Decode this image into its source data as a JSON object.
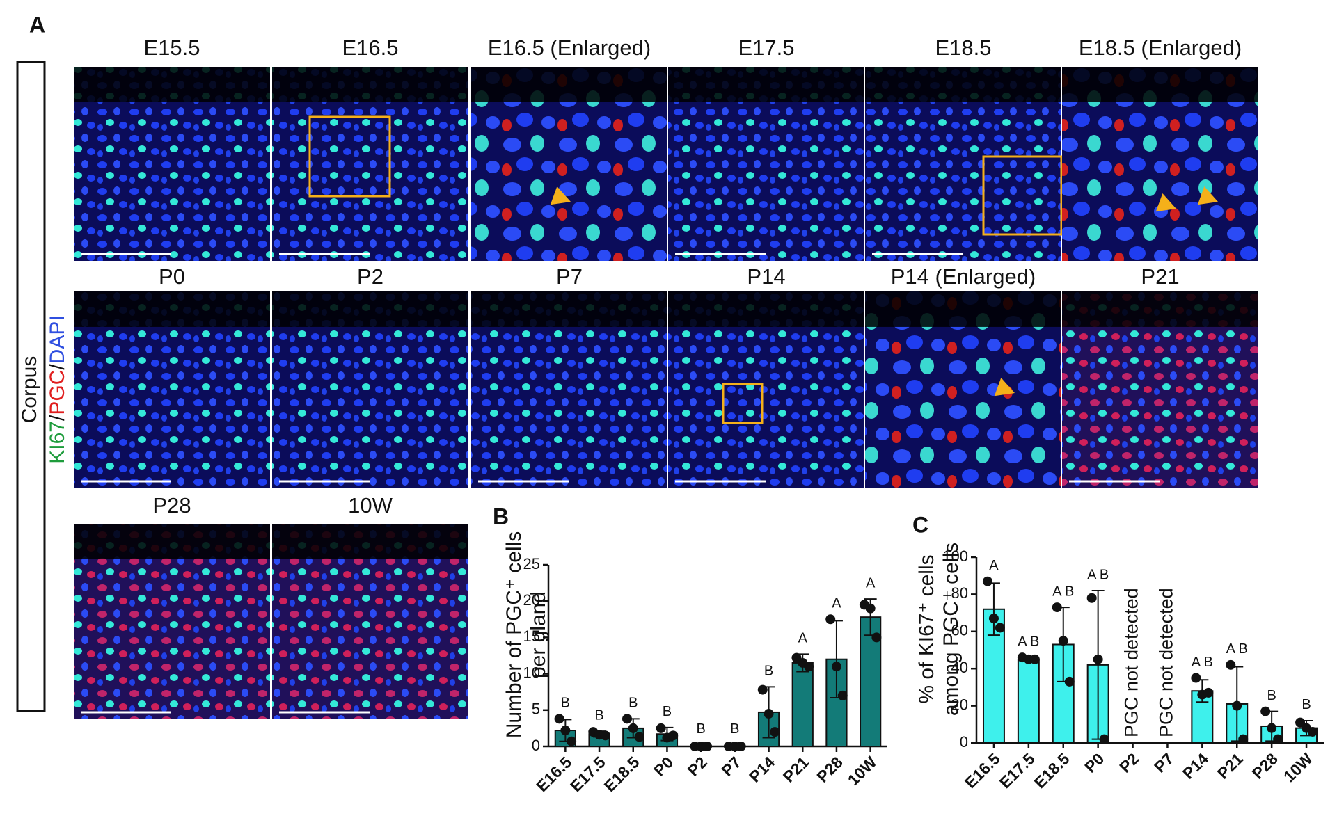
{
  "panel_a": {
    "letter": "A",
    "tissue": "Corpus",
    "stain": [
      {
        "text": "KI67",
        "color": "#1e9c3c"
      },
      {
        "text": "/",
        "color": "#111111"
      },
      {
        "text": "PGC",
        "color": "#e01e1e"
      },
      {
        "text": "/",
        "color": "#111111"
      },
      {
        "text": "DAPI",
        "color": "#2f4fe0"
      }
    ],
    "rows": [
      [
        "E15.5",
        "E16.5",
        "E16.5 (Enlarged)",
        "E17.5",
        "E18.5",
        "E18.5 (Enlarged)"
      ],
      [
        "P0",
        "P2",
        "P7",
        "P14",
        "P14 (Enlarged)",
        "P21"
      ],
      [
        "P28",
        "10W"
      ]
    ]
  },
  "chart_data": [
    {
      "type": "bar",
      "letter": "B",
      "ylabel": [
        "Number of PGC⁺ cells",
        "per gland"
      ],
      "categories": [
        "E16.5",
        "E17.5",
        "E18.5",
        "P0",
        "P2",
        "P7",
        "P14",
        "P21",
        "P28",
        "10W"
      ],
      "values": [
        2.2,
        1.7,
        2.5,
        1.7,
        0.1,
        0.1,
        4.7,
        11.5,
        12,
        17.8
      ],
      "errors": [
        1.5,
        0.4,
        1.3,
        0.9,
        0.1,
        0.1,
        3.5,
        1.2,
        5.3,
        2.5
      ],
      "points": [
        [
          3.8,
          2.2,
          0.7
        ],
        [
          2.0,
          1.6,
          1.5
        ],
        [
          3.8,
          2.5,
          1.3
        ],
        [
          2.5,
          1.2,
          1.5
        ],
        [
          0,
          0,
          0
        ],
        [
          0,
          0,
          0
        ],
        [
          7.8,
          4.5,
          2.0
        ],
        [
          12.2,
          11.5,
          11.0
        ],
        [
          17.5,
          11.0,
          7.0
        ],
        [
          19.5,
          19.0,
          15.0
        ]
      ],
      "letters": [
        "B",
        "B",
        "B",
        "B",
        "B",
        "B",
        "B",
        "A",
        "A",
        "A"
      ],
      "color": "#137b78",
      "ylim": [
        0,
        25
      ],
      "yticks": [
        0,
        5,
        10,
        15,
        20,
        25
      ]
    },
    {
      "type": "bar",
      "letter": "C",
      "ylabel": [
        "% of KI67⁺ cells",
        "among PGC⁺ cells"
      ],
      "categories": [
        "E16.5",
        "E17.5",
        "E18.5",
        "P0",
        "P2",
        "P7",
        "P14",
        "P21",
        "P28",
        "10W"
      ],
      "values": [
        72,
        45,
        53,
        42,
        null,
        null,
        28,
        21,
        9,
        8
      ],
      "errors": [
        14,
        1,
        20,
        40,
        null,
        null,
        6,
        20,
        8,
        4
      ],
      "points": [
        [
          87,
          67,
          62
        ],
        [
          46,
          45,
          45
        ],
        [
          73,
          55,
          33
        ],
        [
          78,
          45,
          2
        ],
        null,
        null,
        [
          35,
          26,
          27
        ],
        [
          42,
          20,
          2
        ],
        [
          17,
          8,
          2
        ],
        [
          11,
          8,
          6
        ]
      ],
      "letters": [
        "A",
        "A B",
        "A B",
        "A B",
        null,
        null,
        "A B",
        "A B",
        "B",
        "B"
      ],
      "annotations": [
        {
          "text": "PGC not detected",
          "x": "P2"
        },
        {
          "text": "PGC not detected",
          "x": "P7"
        }
      ],
      "color": "#3ef0ec",
      "ylim": [
        0,
        100
      ],
      "yticks": [
        0,
        20,
        40,
        60,
        80,
        100
      ]
    }
  ]
}
